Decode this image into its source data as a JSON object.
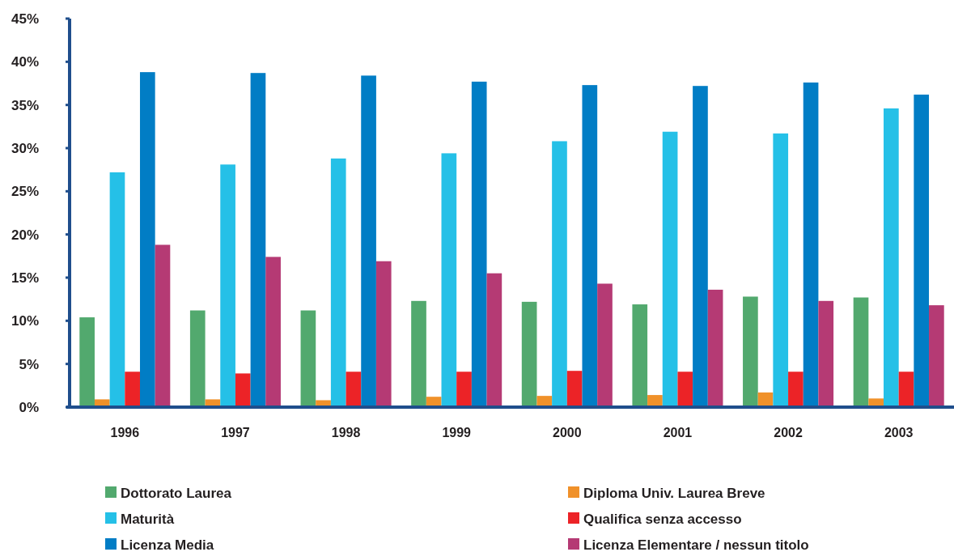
{
  "chart_data": {
    "type": "bar",
    "categories": [
      "1996",
      "1997",
      "1998",
      "1999",
      "2000",
      "2001",
      "2002",
      "2003"
    ],
    "series": [
      {
        "name": "Dottorato Laurea",
        "color": "#52a96e",
        "values": [
          10.4,
          11.2,
          11.2,
          12.3,
          12.2,
          11.9,
          12.8,
          12.7
        ]
      },
      {
        "name": "Diploma Univ. Laurea Breve",
        "color": "#f0912a",
        "values": [
          0.9,
          0.9,
          0.8,
          1.2,
          1.3,
          1.4,
          1.7,
          1.0
        ]
      },
      {
        "name": "Maturità",
        "color": "#25c0e7",
        "values": [
          27.2,
          28.1,
          28.8,
          29.4,
          30.8,
          31.9,
          31.7,
          34.6
        ]
      },
      {
        "name": "Qualifica senza accesso",
        "color": "#ec2327",
        "values": [
          4.1,
          3.9,
          4.1,
          4.1,
          4.2,
          4.1,
          4.1,
          4.1
        ]
      },
      {
        "name": "Licenza Media",
        "color": "#017dc5",
        "values": [
          38.8,
          38.7,
          38.4,
          37.7,
          37.3,
          37.2,
          37.6,
          36.2
        ]
      },
      {
        "name": "Licenza Elementare / nessun titolo",
        "color": "#b53a74",
        "values": [
          18.8,
          17.4,
          16.9,
          15.5,
          14.3,
          13.6,
          12.3,
          11.8
        ]
      }
    ],
    "ylim": [
      0,
      45
    ],
    "yticks": [
      {
        "value": 0,
        "label": "0%"
      },
      {
        "value": 5,
        "label": "5%"
      },
      {
        "value": 10,
        "label": "10%"
      },
      {
        "value": 15,
        "label": "15%"
      },
      {
        "value": 20,
        "label": "20%"
      },
      {
        "value": 25,
        "label": "25%"
      },
      {
        "value": 30,
        "label": "30%"
      },
      {
        "value": 35,
        "label": "35%"
      },
      {
        "value": 40,
        "label": "40%"
      },
      {
        "value": 45,
        "label": "45%"
      }
    ],
    "legend": "bottom",
    "grid": false
  }
}
